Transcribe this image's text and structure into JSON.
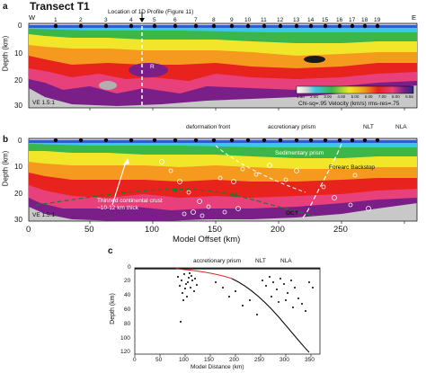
{
  "panel_a": {
    "label": "a",
    "title": "Transect T1",
    "west": "W",
    "east": "E",
    "profile_label": "Location of 1D Profile (Figure 11)",
    "stations": [
      "1",
      "2",
      "3",
      "4",
      "5",
      "6",
      "7",
      "8",
      "9",
      "10",
      "11",
      "12",
      "13",
      "14",
      "15",
      "16",
      "17",
      "18",
      "19"
    ],
    "ve": "VE 1.5:1",
    "colorbar_ticks": [
      "1.50",
      "2.00",
      "3.00",
      "4.00",
      "5.00",
      "6.00",
      "7.00",
      "8.00",
      "8.55"
    ],
    "stats": "Chi-sq=.95  Velocity (km/s)  rms-res=.75",
    "depth_ticks": [
      "0",
      "10",
      "20",
      "30"
    ],
    "depth_label": "Depth (km)",
    "marker": "R"
  },
  "panel_b": {
    "label": "b",
    "top_labels": {
      "deformation_front": "deformation front",
      "accretionary_prism": "accretionary prism",
      "nlt": "NLT",
      "nla": "NLA"
    },
    "sedimentary_prism": "Sedimentary prism",
    "forearc_backstop": "Forearc Backstop",
    "thinned_crust_line1": "Thinned continental crust",
    "thinned_crust_line2": "~10-12 km thick",
    "m_labels": [
      "M",
      "M"
    ],
    "oc_label": "OC?",
    "ve": "VE 1.5:1",
    "x_ticks": [
      "0",
      "50",
      "100",
      "150",
      "200",
      "250"
    ],
    "depth_ticks": [
      "0",
      "10",
      "20",
      "30"
    ],
    "x_label": "Model Offset (km)",
    "depth_label": "Depth (km)"
  },
  "panel_c": {
    "label": "c",
    "top_labels": {
      "accretionary_prism": "accretionary prism",
      "nlt": "NLT",
      "nla": "NLA"
    },
    "x_ticks": [
      "0",
      "50",
      "100",
      "150",
      "200",
      "250",
      "300",
      "350"
    ],
    "y_ticks": [
      "0",
      "20",
      "40",
      "60",
      "80",
      "100",
      "120"
    ],
    "x_label": "Model Distance (km)",
    "y_label": "Depth (km)"
  },
  "colors": {
    "deep_magenta": "#7a1f87",
    "pink": "#e8407a",
    "red": "#e8221c",
    "orange": "#f59a1e",
    "yellow": "#f2e62a",
    "green": "#3bb64a",
    "cyan": "#3cc7e6",
    "blue": "#2a5fd0",
    "gray": "#c8c8c8"
  }
}
